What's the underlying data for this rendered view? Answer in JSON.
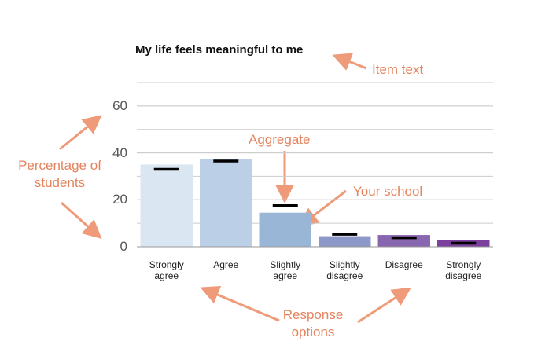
{
  "chart_data": {
    "type": "bar",
    "title": "My life feels meaningful to me",
    "categories": [
      "Strongly agree",
      "Agree",
      "Slightly agree",
      "Slightly disagree",
      "Disagree",
      "Strongly disagree"
    ],
    "series": [
      {
        "name": "Your school",
        "colors": [
          "#dae6f1",
          "#bbd0e6",
          "#9ab6d7",
          "#8c98c8",
          "#8966b0",
          "#7b3f9d"
        ],
        "values": [
          35,
          37.5,
          14.5,
          4.5,
          5,
          3
        ]
      },
      {
        "name": "Aggregate",
        "color": "#000000",
        "marker": "dash",
        "values": [
          33,
          36.5,
          17.5,
          5.3,
          3.8,
          1.5
        ]
      }
    ],
    "ylim": [
      0,
      70
    ],
    "yticks": [
      0,
      20,
      40,
      60
    ],
    "gridlines": [
      10,
      20,
      30,
      40,
      50,
      60,
      70
    ],
    "annotations": [
      {
        "text": "Item text"
      },
      {
        "text": "Percentage of students"
      },
      {
        "text": "Response options"
      }
    ]
  }
}
